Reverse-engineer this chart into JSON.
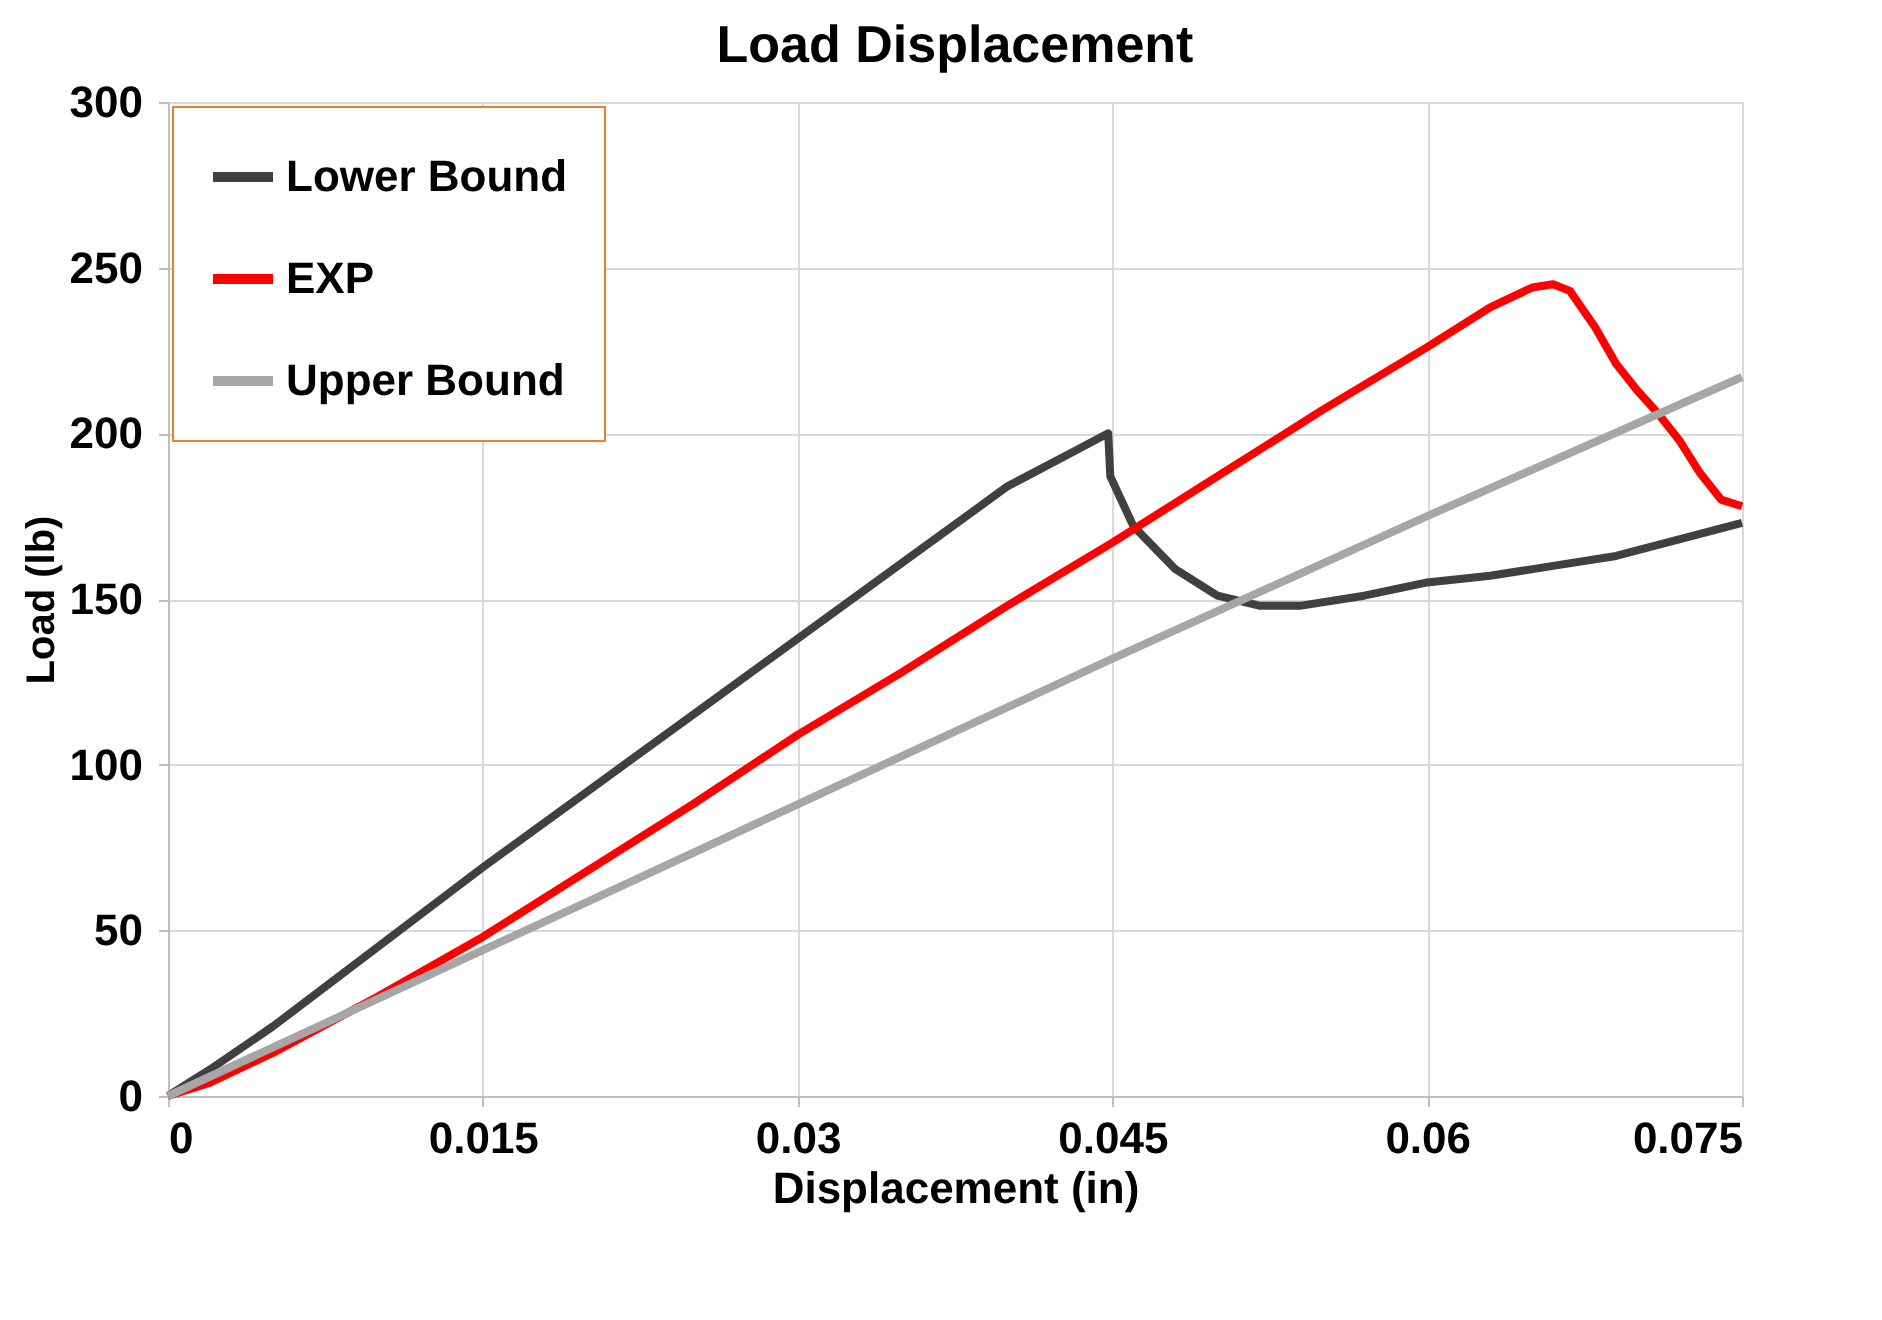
{
  "chart_data": {
    "type": "line",
    "title": "Load Displacement",
    "xlabel": "Displacement (in)",
    "ylabel": "Load (lb)",
    "xlim": [
      0,
      0.075
    ],
    "xticks": [
      0,
      0.015,
      0.03,
      0.045,
      0.06,
      0.075
    ],
    "ylim": [
      0,
      300
    ],
    "yticks": [
      0,
      50,
      100,
      150,
      200,
      250,
      300
    ],
    "grid": true,
    "legend": "top left",
    "line_style": "solid",
    "marker": "none",
    "series": [
      {
        "name": "Lower Bound",
        "color": "#404040",
        "x": [
          0,
          0.002,
          0.005,
          0.01,
          0.015,
          0.02,
          0.025,
          0.03,
          0.035,
          0.04,
          0.043,
          0.0448,
          0.0449,
          0.046,
          0.048,
          0.05,
          0.052,
          0.054,
          0.057,
          0.06,
          0.063,
          0.066,
          0.069,
          0.072,
          0.075
        ],
        "values": [
          0,
          8,
          21,
          45,
          69,
          92,
          115,
          138,
          161,
          184,
          194,
          200,
          187,
          172,
          159,
          151,
          148,
          148,
          151,
          155,
          157,
          160,
          163,
          168,
          173
        ]
      },
      {
        "name": "EXP",
        "color": "#ff0000",
        "x": [
          0,
          0.002,
          0.005,
          0.01,
          0.015,
          0.02,
          0.025,
          0.03,
          0.035,
          0.04,
          0.045,
          0.05,
          0.055,
          0.06,
          0.063,
          0.065,
          0.066,
          0.0668,
          0.068,
          0.069,
          0.07,
          0.071,
          0.072,
          0.073,
          0.074,
          0.075
        ],
        "values": [
          0,
          4,
          13,
          30,
          48,
          68,
          88,
          109,
          128,
          148,
          167,
          187,
          207,
          226,
          238,
          244,
          245,
          243,
          232,
          221,
          213,
          206,
          198,
          188,
          180,
          178
        ]
      },
      {
        "name": "Upper Bound",
        "color": "#a6a6a6",
        "x": [
          0,
          0.015,
          0.03,
          0.045,
          0.06,
          0.075
        ],
        "values": [
          0,
          44,
          88,
          132,
          175,
          217
        ]
      }
    ]
  }
}
